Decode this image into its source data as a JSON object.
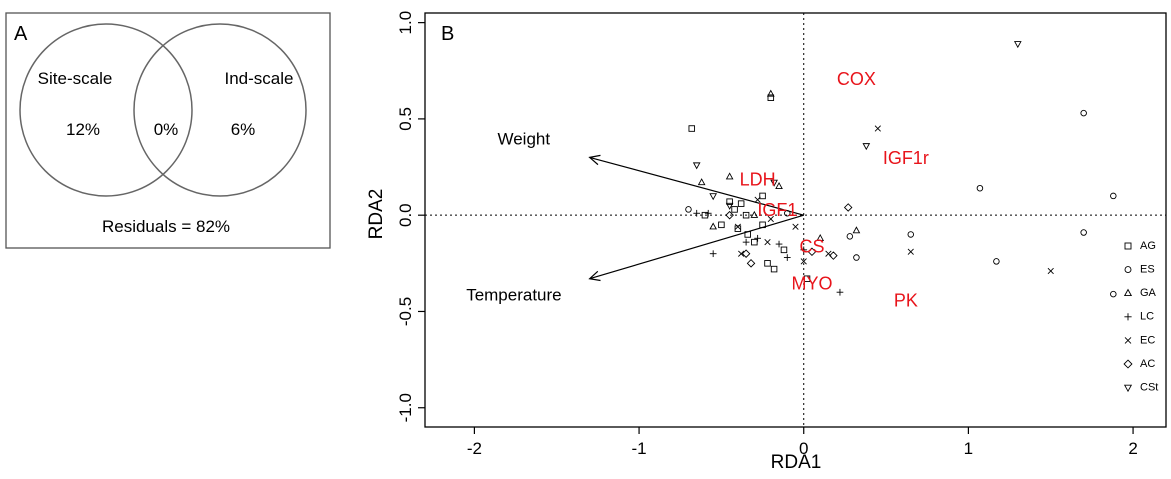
{
  "panel_a": {
    "label": "A",
    "sets": [
      {
        "name": "Site-scale",
        "value": "12%"
      },
      {
        "name": "Ind-scale",
        "value": "6%"
      }
    ],
    "overlap_value": "0%",
    "residuals": "Residuals = 82%"
  },
  "chart_data": {
    "type": "scatter",
    "panel_label": "B",
    "xlabel": "RDA1",
    "ylabel": "RDA2",
    "xlim": [
      -2.3,
      2.2
    ],
    "ylim": [
      -1.1,
      1.05
    ],
    "xticks": [
      -2,
      -1,
      0,
      1,
      2
    ],
    "yticks": [
      -1.0,
      -0.5,
      0.0,
      0.5,
      1.0
    ],
    "xtick_labels": [
      "-2",
      "-1",
      "0",
      "1",
      "2"
    ],
    "ytick_labels": [
      "-1.0",
      "-0.5",
      "0.0",
      "0.5",
      "1.0"
    ],
    "reference_lines": {
      "x": 0,
      "y": 0,
      "style": "dotted"
    },
    "color_points": "#000000",
    "color_labels": "#e8141b",
    "biplot_arrows": [
      {
        "label": "Weight",
        "x": -1.3,
        "y": 0.3,
        "label_x": -1.7,
        "label_y": 0.39
      },
      {
        "label": "Temperature",
        "x": -1.3,
        "y": -0.33,
        "label_x": -1.76,
        "label_y": -0.42
      }
    ],
    "variable_labels": [
      {
        "label": "COX",
        "x": 0.32,
        "y": 0.7
      },
      {
        "label": "IGF1r",
        "x": 0.62,
        "y": 0.29
      },
      {
        "label": "LDH",
        "x": -0.28,
        "y": 0.18
      },
      {
        "label": "IGF1",
        "x": -0.16,
        "y": 0.02
      },
      {
        "label": "CS",
        "x": 0.05,
        "y": -0.17
      },
      {
        "label": "MYO",
        "x": 0.05,
        "y": -0.36
      },
      {
        "label": "PK",
        "x": 0.62,
        "y": -0.45
      }
    ],
    "legend": {
      "position": "right",
      "entries": [
        {
          "name": "AG",
          "marker": "square"
        },
        {
          "name": "ES",
          "marker": "circle"
        },
        {
          "name": "GA",
          "marker": "triangle-up"
        },
        {
          "name": "LC",
          "marker": "plus"
        },
        {
          "name": "EC",
          "marker": "cross"
        },
        {
          "name": "AC",
          "marker": "diamond"
        },
        {
          "name": "CSt",
          "marker": "triangle-down"
        }
      ]
    },
    "series": [
      {
        "name": "AG",
        "marker": "square",
        "points": [
          [
            -0.2,
            0.61
          ],
          [
            -0.68,
            0.45
          ],
          [
            -0.25,
            0.1
          ],
          [
            -0.45,
            0.07
          ],
          [
            -0.38,
            0.06
          ],
          [
            -0.35,
            0.0
          ],
          [
            -0.25,
            -0.05
          ],
          [
            -0.4,
            -0.07
          ],
          [
            -0.3,
            -0.14
          ],
          [
            -0.22,
            -0.25
          ],
          [
            -0.18,
            -0.28
          ],
          [
            -0.34,
            -0.1
          ],
          [
            -0.5,
            -0.05
          ],
          [
            -0.6,
            0.0
          ],
          [
            0.02,
            -0.33
          ],
          [
            -0.42,
            0.03
          ],
          [
            -0.12,
            -0.18
          ]
        ]
      },
      {
        "name": "ES",
        "marker": "circle",
        "points": [
          [
            1.7,
            0.53
          ],
          [
            1.07,
            0.14
          ],
          [
            1.88,
            0.1
          ],
          [
            1.7,
            -0.09
          ],
          [
            0.65,
            -0.1
          ],
          [
            1.17,
            -0.24
          ],
          [
            1.88,
            -0.41
          ],
          [
            0.32,
            -0.22
          ],
          [
            0.28,
            -0.11
          ],
          [
            -0.7,
            0.03
          ],
          [
            -0.1,
            0.01
          ]
        ]
      },
      {
        "name": "GA",
        "marker": "triangle-up",
        "points": [
          [
            -0.2,
            0.63
          ],
          [
            -0.45,
            0.2
          ],
          [
            -0.62,
            0.17
          ],
          [
            -0.15,
            0.15
          ],
          [
            -0.3,
            0.0
          ],
          [
            0.1,
            -0.12
          ],
          [
            0.32,
            -0.08
          ],
          [
            -0.55,
            -0.06
          ]
        ]
      },
      {
        "name": "LC",
        "marker": "plus",
        "points": [
          [
            -0.55,
            -0.2
          ],
          [
            -0.65,
            0.01
          ],
          [
            -0.35,
            -0.14
          ],
          [
            -0.1,
            -0.22
          ],
          [
            0.22,
            -0.4
          ],
          [
            -0.58,
            0.01
          ],
          [
            -0.28,
            -0.12
          ],
          [
            0.0,
            -0.18
          ],
          [
            -0.15,
            -0.15
          ]
        ]
      },
      {
        "name": "EC",
        "marker": "cross",
        "points": [
          [
            0.45,
            0.45
          ],
          [
            0.65,
            -0.19
          ],
          [
            1.5,
            -0.29
          ],
          [
            -0.38,
            -0.2
          ],
          [
            0.0,
            -0.24
          ],
          [
            -0.2,
            -0.02
          ],
          [
            -0.28,
            0.08
          ],
          [
            0.15,
            -0.2
          ],
          [
            -0.05,
            -0.06
          ],
          [
            -0.4,
            -0.06
          ],
          [
            -0.22,
            -0.14
          ]
        ]
      },
      {
        "name": "AC",
        "marker": "diamond",
        "points": [
          [
            0.27,
            0.04
          ],
          [
            0.18,
            -0.21
          ],
          [
            -0.32,
            -0.25
          ],
          [
            -0.35,
            -0.2
          ],
          [
            -0.45,
            0.0
          ],
          [
            0.05,
            -0.19
          ]
        ]
      },
      {
        "name": "CSt",
        "marker": "triangle-down",
        "points": [
          [
            1.3,
            0.89
          ],
          [
            0.38,
            0.36
          ],
          [
            -0.65,
            0.26
          ],
          [
            -0.55,
            0.1
          ],
          [
            -0.45,
            0.05
          ],
          [
            -0.18,
            0.17
          ]
        ]
      }
    ]
  }
}
